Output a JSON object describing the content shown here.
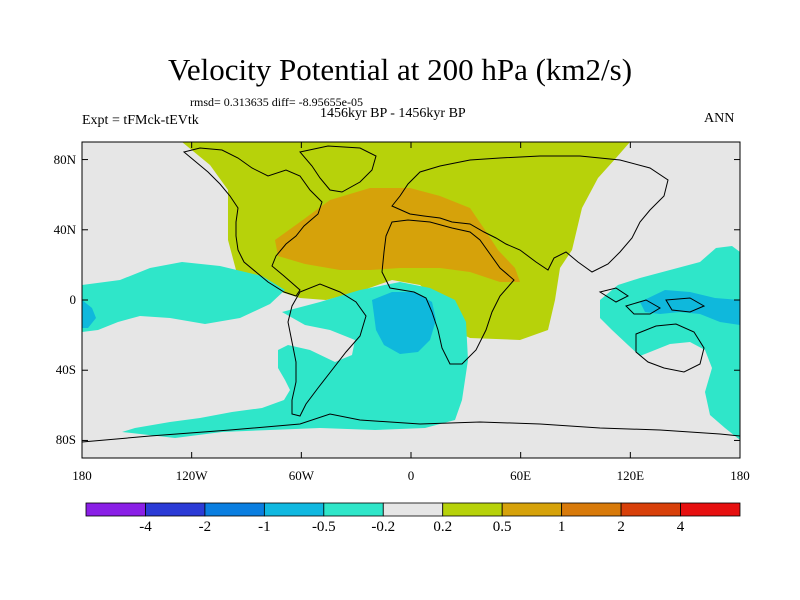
{
  "title": "Velocity Potential at 200 hPa (km2/s)",
  "stats": "rmsd= 0.313635 diff= -8.95655e-05",
  "experiment": "Expt = tFMck-tEVtk",
  "period": "1456kyr BP - 1456kyr BP",
  "season": "ANN",
  "map": {
    "lat_ticks": [
      "80N",
      "40N",
      "0",
      "40S",
      "80S"
    ],
    "lon_ticks": [
      "180",
      "120W",
      "60W",
      "0",
      "60E",
      "120E",
      "180"
    ],
    "lat_values": [
      80,
      40,
      0,
      -40,
      -80
    ],
    "lon_values": [
      -180,
      -120,
      -60,
      0,
      60,
      120,
      180
    ],
    "lat_range": [
      -90,
      90
    ],
    "lon_range": [
      -180,
      180
    ],
    "regions": [
      {
        "id": "positive-0.2-0.5",
        "level": "0.2 to 0.5",
        "color": "#b7d20a"
      },
      {
        "id": "positive-0.5-1",
        "level": "0.5 to 1",
        "color": "#d6a20a"
      },
      {
        "id": "negative-0.5-0.2",
        "level": "-0.5 to -0.2",
        "color": "#2fe6c9"
      },
      {
        "id": "negative-1-0.5",
        "level": "-1 to -0.5",
        "color": "#0fb8dc"
      }
    ]
  },
  "colorbar": {
    "labels": [
      "-4",
      "-2",
      "-1",
      "-0.5",
      "-0.2",
      "0.2",
      "0.5",
      "1",
      "2",
      "4"
    ],
    "colors": [
      "#8a1fe6",
      "#2b3bd6",
      "#0a7ee0",
      "#10b8e0",
      "#2fe6c9",
      "#e6e6e6",
      "#b7d20a",
      "#d6a20a",
      "#d87a0a",
      "#d8400a",
      "#e60f0f"
    ]
  }
}
